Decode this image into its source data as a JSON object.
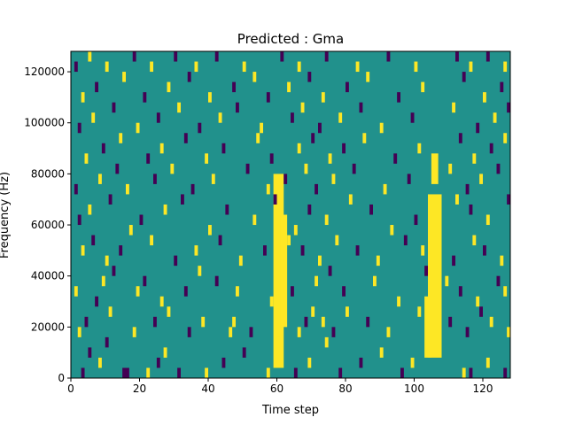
{
  "chart_data": {
    "type": "heatmap",
    "title": "Predicted : Gma",
    "xlabel": "Time step",
    "ylabel": "Frequency (Hz)",
    "xlim": [
      0,
      128
    ],
    "ylim": [
      0,
      128000
    ],
    "xticks": [
      0,
      20,
      40,
      60,
      80,
      100,
      120
    ],
    "xtick_labels": [
      "0",
      "20",
      "40",
      "60",
      "80",
      "100",
      "120"
    ],
    "yticks": [
      0,
      20000,
      40000,
      60000,
      80000,
      100000,
      120000
    ],
    "ytick_labels": [
      "0",
      "20000",
      "40000",
      "60000",
      "80000",
      "100000",
      "120000"
    ],
    "grid": false,
    "levels": [
      -1,
      0,
      1
    ],
    "colormap": {
      "-1": "#440154",
      "0": "#21918c",
      "1": "#fde725"
    },
    "background_level": 0,
    "cell_width": 1,
    "cell_height": 4000,
    "bands": [
      {
        "x0": 59,
        "x1": 62,
        "y0": 4000,
        "y1": 80000,
        "value": 1
      },
      {
        "x0": 61,
        "x1": 63,
        "y0": 20000,
        "y1": 64000,
        "value": 1
      },
      {
        "x0": 104,
        "x1": 108,
        "y0": 8000,
        "y1": 72000,
        "value": 1
      },
      {
        "x0": 103,
        "x1": 105,
        "y0": 8000,
        "y1": 32000,
        "value": 1
      },
      {
        "x0": 105,
        "x1": 107,
        "y0": 76000,
        "y1": 88000,
        "value": 1
      }
    ],
    "cells": [
      [
        3,
        0,
        -1
      ],
      [
        5,
        2,
        -1
      ],
      [
        8,
        1,
        1
      ],
      [
        10,
        3,
        -1
      ],
      [
        15,
        0,
        -1
      ],
      [
        16,
        0,
        -1
      ],
      [
        22,
        0,
        1
      ],
      [
        25,
        1,
        -1
      ],
      [
        27,
        2,
        1
      ],
      [
        31,
        0,
        -1
      ],
      [
        39,
        0,
        1
      ],
      [
        44,
        1,
        -1
      ],
      [
        50,
        2,
        -1
      ],
      [
        57,
        0,
        1
      ],
      [
        65,
        0,
        -1
      ],
      [
        69,
        1,
        1
      ],
      [
        74,
        3,
        1
      ],
      [
        78,
        0,
        -1
      ],
      [
        84,
        1,
        -1
      ],
      [
        90,
        2,
        1
      ],
      [
        96,
        0,
        -1
      ],
      [
        99,
        1,
        1
      ],
      [
        114,
        0,
        1
      ],
      [
        116,
        0,
        -1
      ],
      [
        121,
        1,
        1
      ],
      [
        126,
        0,
        -1
      ],
      [
        2,
        4,
        1
      ],
      [
        4,
        5,
        -1
      ],
      [
        11,
        6,
        1
      ],
      [
        18,
        4,
        1
      ],
      [
        24,
        5,
        -1
      ],
      [
        28,
        6,
        1
      ],
      [
        34,
        4,
        -1
      ],
      [
        38,
        5,
        1
      ],
      [
        46,
        4,
        1
      ],
      [
        47,
        5,
        1
      ],
      [
        52,
        4,
        -1
      ],
      [
        60,
        3,
        1
      ],
      [
        66,
        4,
        1
      ],
      [
        68,
        5,
        -1
      ],
      [
        70,
        6,
        1
      ],
      [
        73,
        5,
        1
      ],
      [
        76,
        4,
        -1
      ],
      [
        80,
        6,
        1
      ],
      [
        86,
        5,
        -1
      ],
      [
        92,
        4,
        1
      ],
      [
        101,
        6,
        1
      ],
      [
        110,
        5,
        -1
      ],
      [
        115,
        4,
        -1
      ],
      [
        119,
        6,
        -1
      ],
      [
        122,
        5,
        1
      ],
      [
        127,
        4,
        1
      ],
      [
        1,
        8,
        1
      ],
      [
        7,
        7,
        -1
      ],
      [
        9,
        9,
        1
      ],
      [
        12,
        10,
        -1
      ],
      [
        19,
        8,
        1
      ],
      [
        21,
        9,
        -1
      ],
      [
        26,
        7,
        1
      ],
      [
        33,
        8,
        -1
      ],
      [
        37,
        10,
        1
      ],
      [
        42,
        9,
        -1
      ],
      [
        48,
        8,
        1
      ],
      [
        58,
        7,
        1
      ],
      [
        64,
        8,
        -1
      ],
      [
        71,
        9,
        1
      ],
      [
        75,
        10,
        -1
      ],
      [
        79,
        8,
        -1
      ],
      [
        88,
        9,
        1
      ],
      [
        95,
        7,
        1
      ],
      [
        103,
        10,
        -1
      ],
      [
        109,
        9,
        1
      ],
      [
        113,
        8,
        -1
      ],
      [
        118,
        7,
        1
      ],
      [
        124,
        9,
        -1
      ],
      [
        126,
        8,
        1
      ],
      [
        3,
        12,
        1
      ],
      [
        6,
        13,
        -1
      ],
      [
        10,
        11,
        1
      ],
      [
        14,
        12,
        -1
      ],
      [
        23,
        13,
        1
      ],
      [
        30,
        11,
        -1
      ],
      [
        36,
        12,
        1
      ],
      [
        43,
        13,
        -1
      ],
      [
        49,
        11,
        1
      ],
      [
        56,
        12,
        -1
      ],
      [
        63,
        13,
        1
      ],
      [
        67,
        12,
        -1
      ],
      [
        72,
        11,
        1
      ],
      [
        77,
        13,
        1
      ],
      [
        83,
        12,
        -1
      ],
      [
        89,
        11,
        1
      ],
      [
        97,
        13,
        -1
      ],
      [
        102,
        12,
        1
      ],
      [
        111,
        11,
        -1
      ],
      [
        117,
        13,
        1
      ],
      [
        120,
        12,
        -1
      ],
      [
        125,
        11,
        1
      ],
      [
        2,
        15,
        -1
      ],
      [
        5,
        16,
        1
      ],
      [
        11,
        17,
        -1
      ],
      [
        17,
        14,
        1
      ],
      [
        20,
        15,
        -1
      ],
      [
        27,
        16,
        1
      ],
      [
        32,
        17,
        -1
      ],
      [
        40,
        14,
        1
      ],
      [
        45,
        16,
        -1
      ],
      [
        53,
        15,
        1
      ],
      [
        59,
        17,
        -1
      ],
      [
        65,
        14,
        1
      ],
      [
        69,
        16,
        -1
      ],
      [
        74,
        15,
        1
      ],
      [
        81,
        17,
        1
      ],
      [
        87,
        16,
        -1
      ],
      [
        93,
        14,
        1
      ],
      [
        100,
        15,
        -1
      ],
      [
        112,
        17,
        1
      ],
      [
        116,
        16,
        -1
      ],
      [
        121,
        15,
        1
      ],
      [
        127,
        17,
        -1
      ],
      [
        1,
        18,
        -1
      ],
      [
        8,
        19,
        1
      ],
      [
        13,
        20,
        -1
      ],
      [
        16,
        18,
        1
      ],
      [
        24,
        19,
        -1
      ],
      [
        29,
        20,
        1
      ],
      [
        35,
        18,
        -1
      ],
      [
        41,
        19,
        1
      ],
      [
        51,
        20,
        -1
      ],
      [
        57,
        18,
        1
      ],
      [
        62,
        19,
        -1
      ],
      [
        68,
        20,
        1
      ],
      [
        71,
        18,
        -1
      ],
      [
        76,
        19,
        1
      ],
      [
        82,
        20,
        -1
      ],
      [
        91,
        18,
        1
      ],
      [
        98,
        19,
        -1
      ],
      [
        110,
        20,
        1
      ],
      [
        115,
        18,
        -1
      ],
      [
        119,
        19,
        1
      ],
      [
        124,
        20,
        -1
      ],
      [
        4,
        21,
        1
      ],
      [
        9,
        22,
        -1
      ],
      [
        14,
        23,
        1
      ],
      [
        22,
        21,
        -1
      ],
      [
        26,
        22,
        1
      ],
      [
        33,
        23,
        -1
      ],
      [
        39,
        21,
        1
      ],
      [
        44,
        22,
        -1
      ],
      [
        54,
        23,
        1
      ],
      [
        58,
        21,
        -1
      ],
      [
        66,
        22,
        1
      ],
      [
        70,
        23,
        -1
      ],
      [
        75,
        21,
        1
      ],
      [
        79,
        22,
        -1
      ],
      [
        85,
        23,
        1
      ],
      [
        94,
        21,
        -1
      ],
      [
        101,
        22,
        1
      ],
      [
        113,
        23,
        -1
      ],
      [
        117,
        21,
        1
      ],
      [
        122,
        22,
        -1
      ],
      [
        126,
        23,
        1
      ],
      [
        2,
        24,
        -1
      ],
      [
        6,
        25,
        1
      ],
      [
        12,
        26,
        -1
      ],
      [
        19,
        24,
        1
      ],
      [
        25,
        25,
        -1
      ],
      [
        31,
        26,
        1
      ],
      [
        37,
        24,
        -1
      ],
      [
        43,
        25,
        1
      ],
      [
        48,
        26,
        -1
      ],
      [
        55,
        24,
        1
      ],
      [
        64,
        25,
        -1
      ],
      [
        67,
        26,
        1
      ],
      [
        72,
        24,
        -1
      ],
      [
        78,
        25,
        1
      ],
      [
        84,
        26,
        -1
      ],
      [
        90,
        24,
        1
      ],
      [
        99,
        25,
        -1
      ],
      [
        111,
        26,
        1
      ],
      [
        118,
        24,
        -1
      ],
      [
        123,
        25,
        1
      ],
      [
        127,
        26,
        -1
      ],
      [
        3,
        27,
        1
      ],
      [
        7,
        28,
        -1
      ],
      [
        15,
        29,
        1
      ],
      [
        21,
        27,
        -1
      ],
      [
        28,
        28,
        1
      ],
      [
        34,
        29,
        -1
      ],
      [
        40,
        27,
        1
      ],
      [
        47,
        28,
        -1
      ],
      [
        53,
        29,
        1
      ],
      [
        57,
        27,
        -1
      ],
      [
        63,
        28,
        1
      ],
      [
        69,
        29,
        -1
      ],
      [
        73,
        27,
        1
      ],
      [
        80,
        28,
        -1
      ],
      [
        86,
        29,
        1
      ],
      [
        95,
        27,
        -1
      ],
      [
        102,
        28,
        1
      ],
      [
        114,
        29,
        -1
      ],
      [
        120,
        27,
        1
      ],
      [
        125,
        28,
        -1
      ],
      [
        1,
        30,
        -1
      ],
      [
        5,
        31,
        1
      ],
      [
        10,
        30,
        1
      ],
      [
        18,
        31,
        -1
      ],
      [
        23,
        30,
        1
      ],
      [
        30,
        31,
        -1
      ],
      [
        36,
        30,
        1
      ],
      [
        42,
        31,
        -1
      ],
      [
        50,
        30,
        1
      ],
      [
        61,
        31,
        -1
      ],
      [
        66,
        30,
        1
      ],
      [
        74,
        31,
        -1
      ],
      [
        83,
        30,
        1
      ],
      [
        92,
        31,
        -1
      ],
      [
        100,
        30,
        1
      ],
      [
        112,
        31,
        -1
      ],
      [
        116,
        30,
        1
      ],
      [
        121,
        31,
        -1
      ],
      [
        126,
        30,
        1
      ]
    ]
  }
}
